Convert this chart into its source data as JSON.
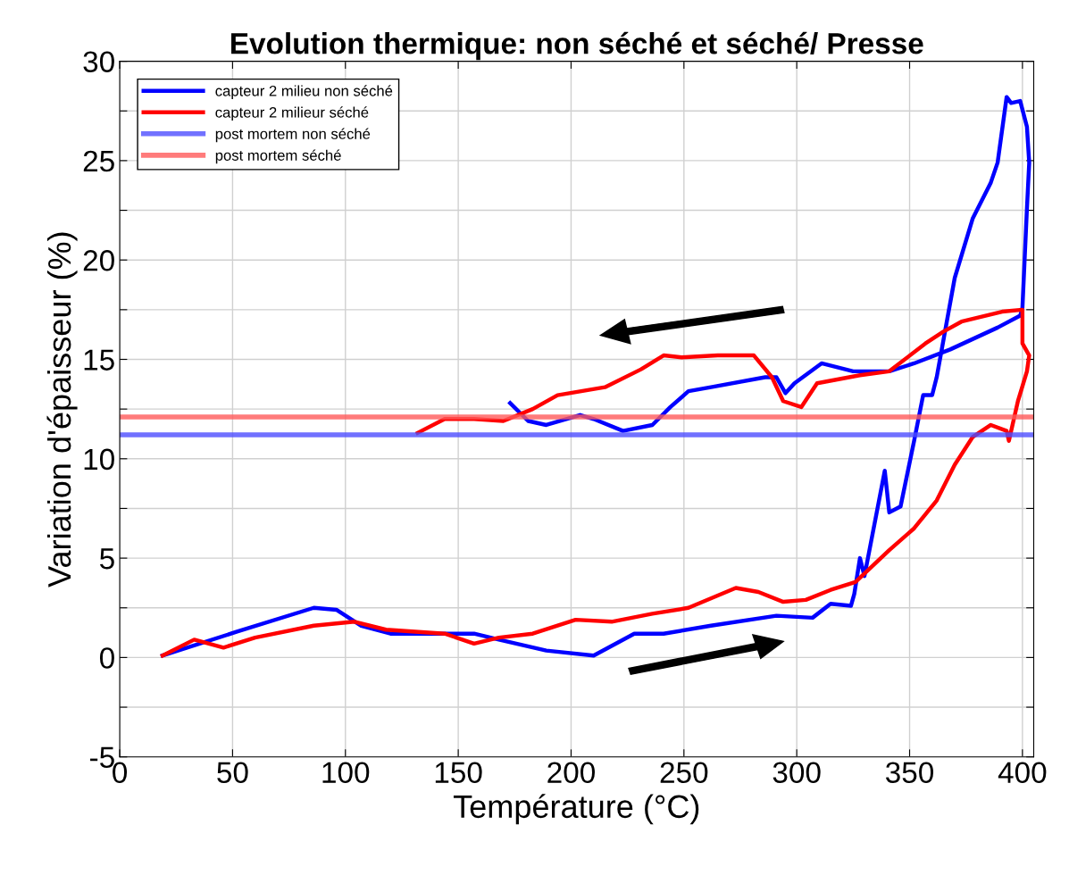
{
  "chart_data": {
    "type": "line",
    "title": "Evolution thermique: non séché et séché/ Presse",
    "xlabel": "Température (°C)",
    "ylabel": "Variation d'épaisseur (%)",
    "xlim": [
      0,
      405
    ],
    "xticks": [
      0,
      50,
      100,
      150,
      200,
      250,
      300,
      350,
      400
    ],
    "ylim": [
      -5,
      30
    ],
    "yticks": [
      -5,
      {
        "value": -2.5,
        "label": null
      },
      0,
      {
        "value": 2.5,
        "label": null
      },
      5,
      {
        "value": 7.5,
        "label": null
      },
      10,
      {
        "value": 12.5,
        "label": null
      },
      15,
      {
        "value": 17.5,
        "label": null
      },
      20,
      {
        "value": 22.5,
        "label": null
      },
      25,
      {
        "value": 27.5,
        "label": null
      },
      30
    ],
    "grid": true,
    "legend": "top left",
    "marker": "none",
    "line_style": "solid",
    "series": [
      {
        "name": "capteur 2 milieu non séché",
        "color": "#0000ff",
        "x": [
          19,
          52,
          86,
          96,
          107,
          120,
          157,
          168,
          189,
          210,
          228,
          241,
          262,
          291,
          307,
          315,
          324,
          325.5,
          328,
          330,
          339,
          341,
          346,
          352,
          356,
          360,
          362,
          370,
          378,
          386,
          389,
          393,
          395,
          399,
          402,
          403,
          402,
          400,
          399,
          389,
          368,
          352,
          341,
          325,
          311,
          299,
          295,
          291,
          286,
          262,
          252,
          244,
          236,
          223,
          210,
          204,
          189,
          181,
          173
        ],
        "values": [
          0.1,
          1.3,
          2.5,
          2.4,
          1.6,
          1.2,
          1.2,
          0.9,
          0.35,
          0.1,
          1.2,
          1.2,
          1.6,
          2.1,
          2.0,
          2.7,
          2.6,
          3.2,
          5.0,
          4.1,
          9.4,
          7.3,
          7.6,
          10.9,
          13.2,
          13.2,
          14.1,
          19.1,
          22.1,
          23.9,
          24.9,
          28.2,
          27.9,
          28.0,
          26.7,
          24.9,
          22.6,
          17.6,
          17.2,
          16.6,
          15.5,
          14.8,
          14.4,
          14.4,
          14.8,
          13.8,
          13.3,
          14.1,
          14.1,
          13.6,
          13.4,
          12.6,
          11.7,
          11.4,
          12.0,
          12.2,
          11.7,
          11.9,
          12.8
        ]
      },
      {
        "name": "capteur 2 milieur séché",
        "color": "#ff0000",
        "x": [
          19,
          33,
          46,
          60,
          86,
          104,
          118,
          144,
          157,
          168,
          183,
          202,
          218,
          236,
          252,
          273,
          283,
          294,
          304,
          315,
          326,
          341,
          352,
          362,
          370,
          378,
          386,
          393,
          394,
          395,
          398,
          402,
          403,
          400,
          400,
          391,
          373,
          365,
          357,
          341,
          328,
          309,
          302,
          294,
          289,
          281,
          265,
          249,
          241,
          231,
          215,
          194,
          183,
          170,
          157,
          144,
          132
        ],
        "values": [
          0.1,
          0.9,
          0.5,
          1.0,
          1.6,
          1.8,
          1.4,
          1.2,
          0.7,
          1.0,
          1.2,
          1.9,
          1.8,
          2.2,
          2.5,
          3.5,
          3.3,
          2.8,
          2.9,
          3.4,
          3.8,
          5.4,
          6.5,
          7.9,
          9.7,
          11.1,
          11.7,
          11.4,
          10.9,
          11.4,
          12.9,
          14.4,
          15.2,
          15.8,
          17.5,
          17.4,
          16.9,
          16.4,
          15.8,
          14.4,
          14.2,
          13.8,
          12.6,
          12.9,
          14.1,
          15.2,
          15.2,
          15.1,
          15.2,
          14.5,
          13.6,
          13.2,
          12.5,
          11.9,
          12.0,
          12.0,
          11.3
        ]
      },
      {
        "name": "post mortem non séché",
        "color": "#4d4dff",
        "x": [
          0,
          405
        ],
        "values": [
          11.2,
          11.2
        ]
      },
      {
        "name": "post mortem séché",
        "color": "#ff5a5a",
        "x": [
          0,
          405
        ],
        "values": [
          12.1,
          12.1
        ]
      }
    ]
  }
}
